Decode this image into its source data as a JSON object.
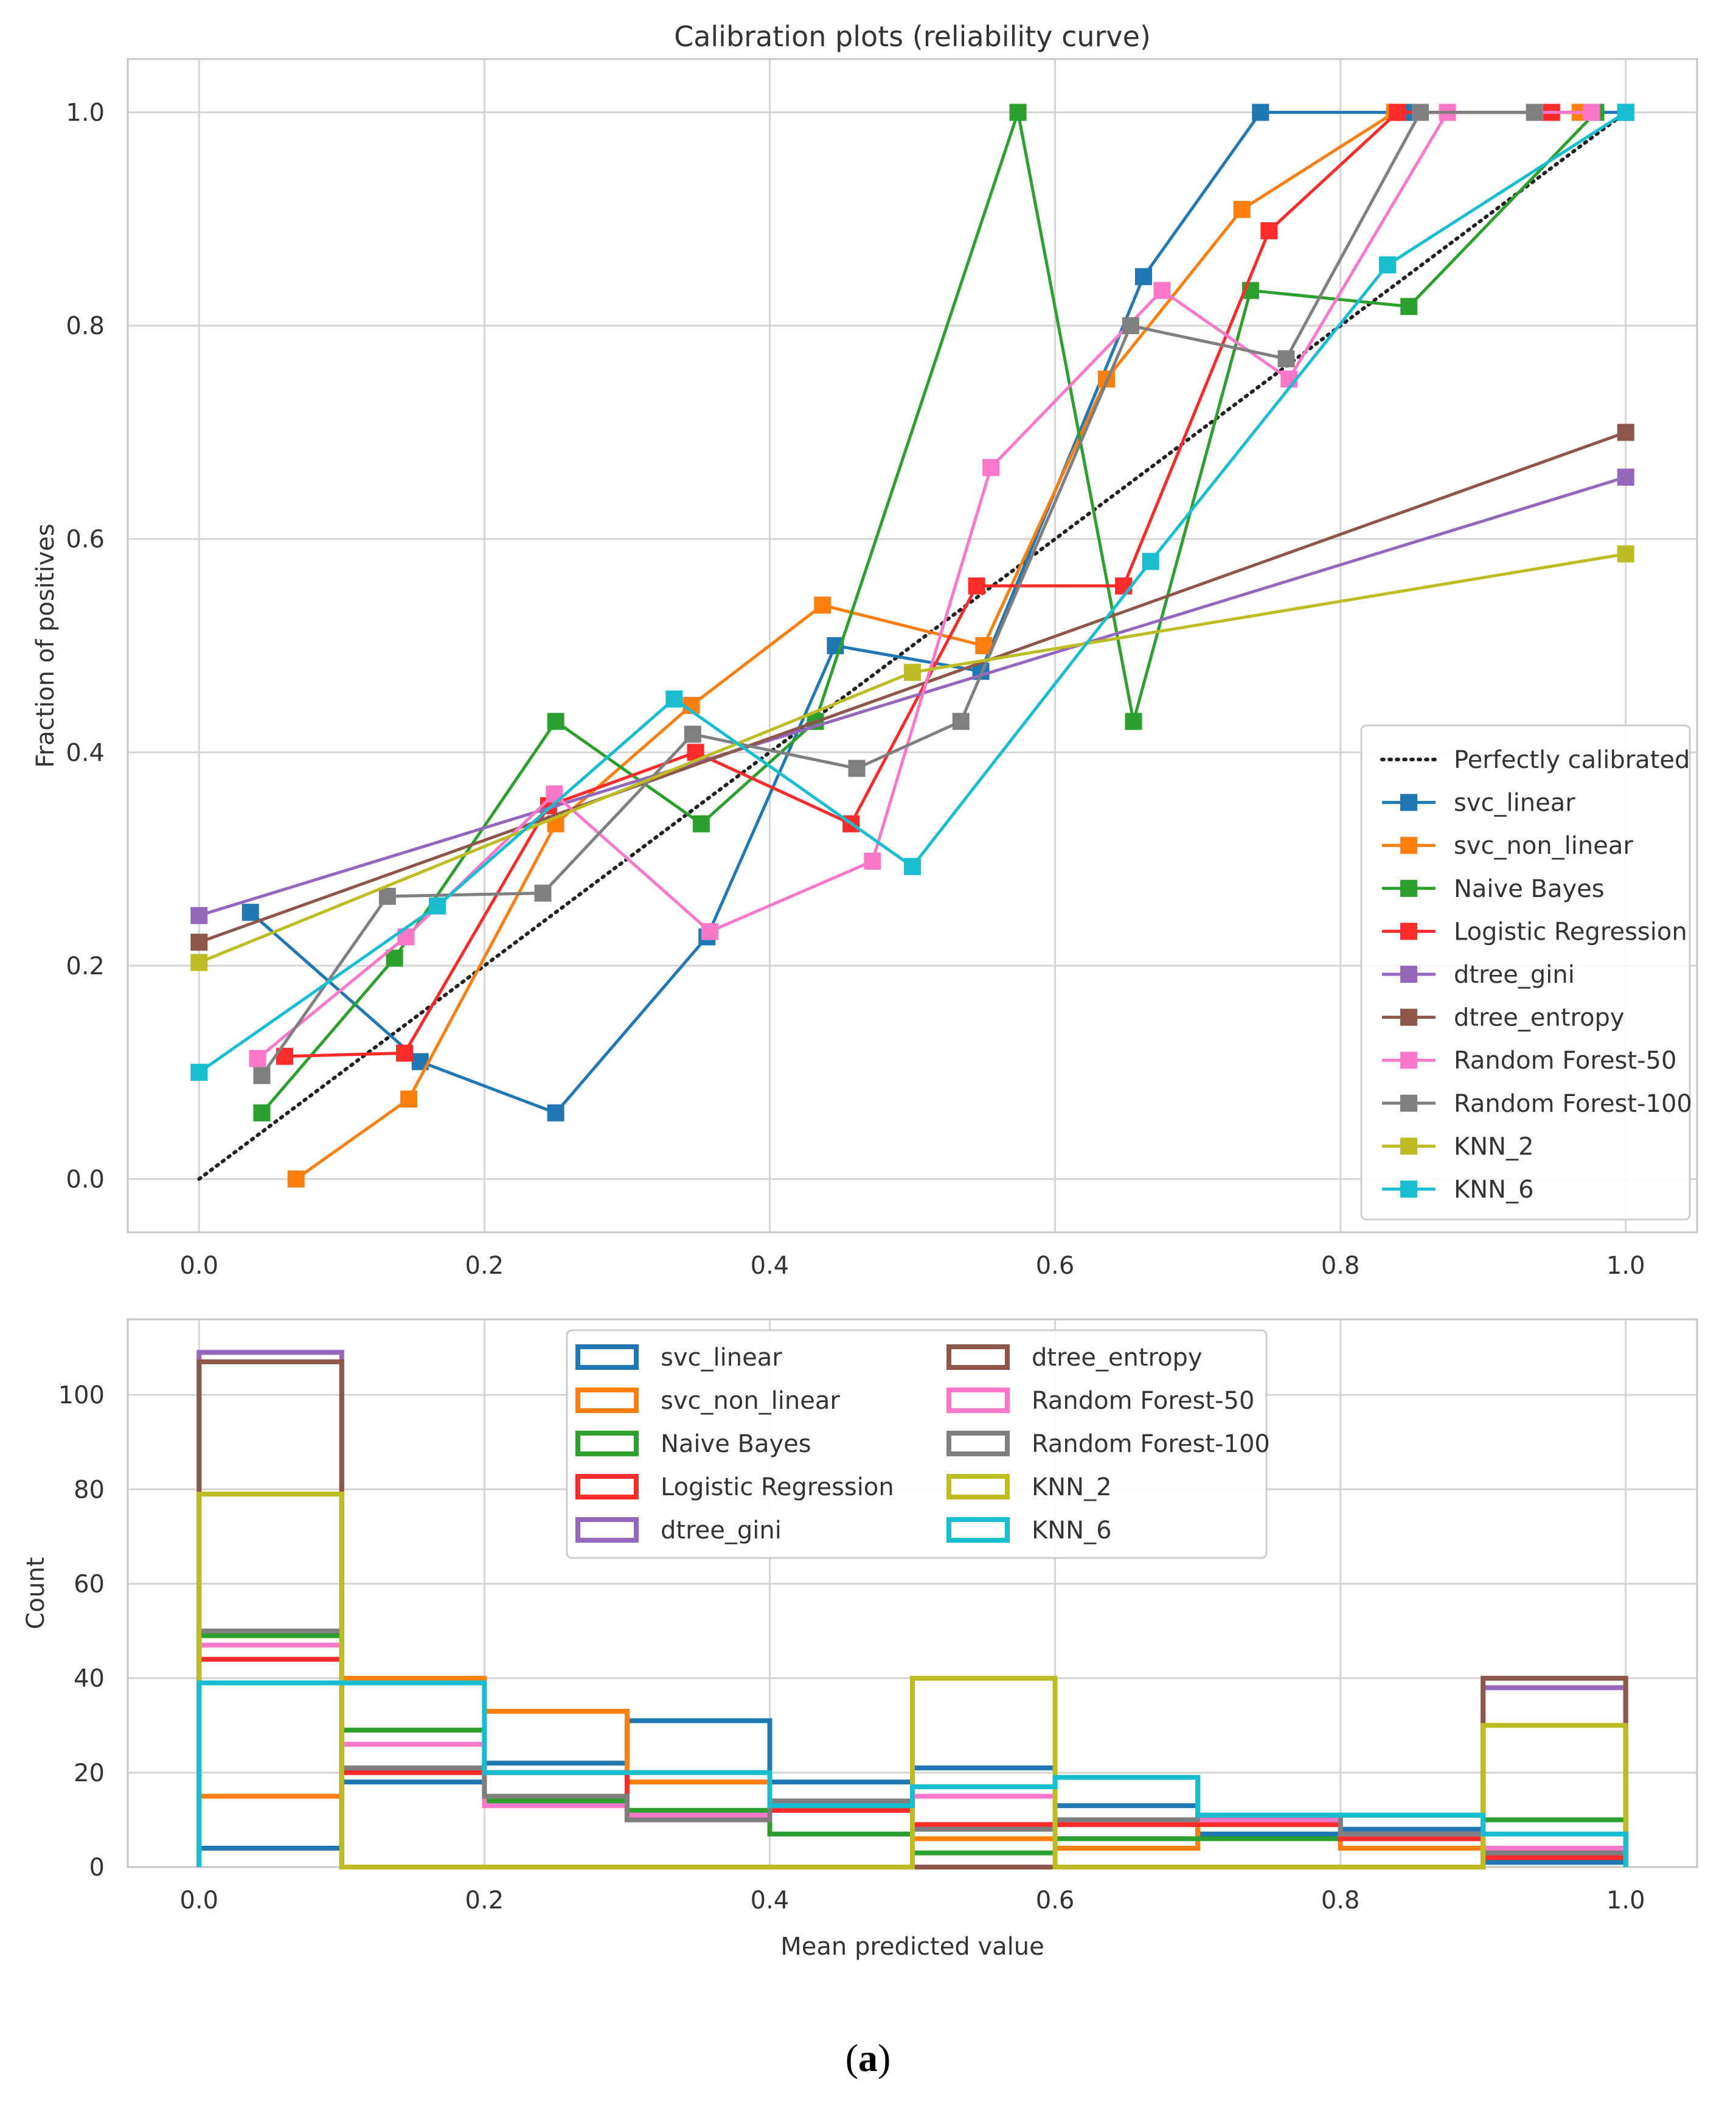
{
  "figure_caption": {
    "open": "(",
    "letter": "a",
    "close": ")"
  },
  "chart_data": [
    {
      "type": "line",
      "title": "Calibration plots  (reliability curve)",
      "xlabel": "",
      "ylabel": "Fraction of positives",
      "xlim": [
        -0.05,
        1.05
      ],
      "ylim": [
        -0.05,
        1.05
      ],
      "xticks": [
        0.0,
        0.2,
        0.4,
        0.6,
        0.8,
        1.0
      ],
      "xtick_labels": [
        "0.0",
        "0.2",
        "0.4",
        "0.6",
        "0.8",
        "1.0"
      ],
      "yticks": [
        0.0,
        0.2,
        0.4,
        0.6,
        0.8,
        1.0
      ],
      "ytick_labels": [
        "0.0",
        "0.2",
        "0.4",
        "0.6",
        "0.8",
        "1.0"
      ],
      "grid": true,
      "legend_position": "lower-right",
      "reference": {
        "name": "Perfectly calibrated",
        "x": [
          0,
          1
        ],
        "y": [
          0,
          1
        ],
        "color": "#222222",
        "style": "dotted"
      },
      "series": [
        {
          "name": "svc_linear",
          "color": "#1f77b4",
          "x": [
            0.036,
            0.155,
            0.25,
            0.356,
            0.446,
            0.548,
            0.662,
            0.744,
            0.845,
            1.0
          ],
          "y": [
            0.25,
            0.11,
            0.062,
            0.227,
            0.5,
            0.476,
            0.846,
            1.0,
            1.0,
            1.0
          ]
        },
        {
          "name": "svc_non_linear",
          "color": "#ff7f0e",
          "x": [
            0.068,
            0.147,
            0.25,
            0.345,
            0.437,
            0.55,
            0.636,
            0.731,
            0.838,
            0.968
          ],
          "y": [
            0.0,
            0.075,
            0.333,
            0.444,
            0.538,
            0.5,
            0.75,
            0.909,
            1.0,
            1.0
          ]
        },
        {
          "name": "Naive Bayes",
          "color": "#2ca02c",
          "x": [
            0.044,
            0.137,
            0.25,
            0.352,
            0.432,
            0.574,
            0.655,
            0.737,
            0.848,
            0.979
          ],
          "y": [
            0.062,
            0.207,
            0.429,
            0.333,
            0.429,
            1.0,
            0.429,
            0.833,
            0.818,
            1.0
          ]
        },
        {
          "name": "Logistic Regression",
          "color": "#ff2a2a",
          "x": [
            0.06,
            0.144,
            0.245,
            0.348,
            0.457,
            0.545,
            0.648,
            0.75,
            0.84,
            0.948
          ],
          "y": [
            0.115,
            0.118,
            0.35,
            0.4,
            0.333,
            0.556,
            0.556,
            0.889,
            1.0,
            1.0
          ]
        },
        {
          "name": "dtree_gini",
          "color": "#9467bd",
          "x": [
            0.0,
            1.0
          ],
          "y": [
            0.247,
            0.658
          ]
        },
        {
          "name": "dtree_entropy",
          "color": "#8c564b",
          "x": [
            0.0,
            1.0
          ],
          "y": [
            0.222,
            0.7
          ]
        },
        {
          "name": "Random Forest-50",
          "color": "#ff77c8",
          "x": [
            0.041,
            0.145,
            0.249,
            0.358,
            0.472,
            0.555,
            0.675,
            0.764,
            0.875,
            0.976
          ],
          "y": [
            0.113,
            0.227,
            0.361,
            0.232,
            0.298,
            0.667,
            0.833,
            0.75,
            1.0,
            1.0
          ]
        },
        {
          "name": "Random Forest-100",
          "color": "#7f7f7f",
          "x": [
            0.044,
            0.132,
            0.241,
            0.346,
            0.461,
            0.534,
            0.653,
            0.762,
            0.856,
            0.936
          ],
          "y": [
            0.097,
            0.265,
            0.268,
            0.417,
            0.385,
            0.429,
            0.8,
            0.769,
            1.0,
            1.0
          ]
        },
        {
          "name": "KNN_2",
          "color": "#bcbd22",
          "x": [
            0.0,
            0.5,
            1.0
          ],
          "y": [
            0.203,
            0.475,
            0.586
          ]
        },
        {
          "name": "KNN_6",
          "color": "#17becf",
          "x": [
            0.0,
            0.167,
            0.333,
            0.5,
            0.667,
            0.833,
            1.0
          ],
          "y": [
            0.1,
            0.256,
            0.45,
            0.293,
            0.579,
            0.857,
            1.0
          ]
        }
      ]
    },
    {
      "type": "histogram",
      "title": "",
      "xlabel": "Mean predicted value",
      "ylabel": "Count",
      "xlim": [
        -0.05,
        1.05
      ],
      "ylim": [
        0,
        116
      ],
      "xticks": [
        0.0,
        0.2,
        0.4,
        0.6,
        0.8,
        1.0
      ],
      "xtick_labels": [
        "0.0",
        "0.2",
        "0.4",
        "0.6",
        "0.8",
        "1.0"
      ],
      "yticks": [
        0,
        20,
        40,
        60,
        80,
        100
      ],
      "ytick_labels": [
        "0",
        "20",
        "40",
        "60",
        "80",
        "100"
      ],
      "grid": true,
      "legend_position": "top-center",
      "legend_columns": 2,
      "bin_edges": [
        0.0,
        0.1,
        0.2,
        0.3,
        0.4,
        0.5,
        0.6,
        0.7,
        0.8,
        0.9,
        1.0
      ],
      "series": [
        {
          "name": "svc_linear",
          "color": "#1f77b4",
          "counts": [
            4,
            18,
            22,
            31,
            18,
            21,
            13,
            7,
            8,
            1
          ]
        },
        {
          "name": "svc_non_linear",
          "color": "#ff7f0e",
          "counts": [
            15,
            40,
            33,
            18,
            13,
            6,
            4,
            11,
            4,
            3
          ]
        },
        {
          "name": "Naive Bayes",
          "color": "#2ca02c",
          "counts": [
            49,
            29,
            14,
            12,
            7,
            3,
            6,
            6,
            11,
            10
          ]
        },
        {
          "name": "Logistic Regression",
          "color": "#ff2a2a",
          "counts": [
            44,
            20,
            20,
            10,
            12,
            9,
            9,
            9,
            6,
            2
          ]
        },
        {
          "name": "dtree_gini",
          "color": "#9467bd",
          "counts": [
            109,
            0,
            0,
            0,
            0,
            0,
            0,
            0,
            0,
            38
          ]
        },
        {
          "name": "dtree_entropy",
          "color": "#8c564b",
          "counts": [
            107,
            0,
            0,
            0,
            0,
            0,
            0,
            0,
            0,
            40
          ]
        },
        {
          "name": "Random Forest-50",
          "color": "#ff77c8",
          "counts": [
            47,
            26,
            13,
            11,
            13,
            15,
            10,
            10,
            7,
            4
          ]
        },
        {
          "name": "Random Forest-100",
          "color": "#7f7f7f",
          "counts": [
            50,
            21,
            15,
            10,
            14,
            8,
            10,
            11,
            7,
            3
          ]
        },
        {
          "name": "KNN_2",
          "color": "#bcbd22",
          "counts": [
            79,
            0,
            0,
            0,
            0,
            40,
            0,
            0,
            0,
            30
          ]
        },
        {
          "name": "KNN_6",
          "color": "#17becf",
          "counts": [
            39,
            39,
            20,
            20,
            13,
            17,
            19,
            11,
            11,
            7
          ]
        }
      ]
    }
  ]
}
